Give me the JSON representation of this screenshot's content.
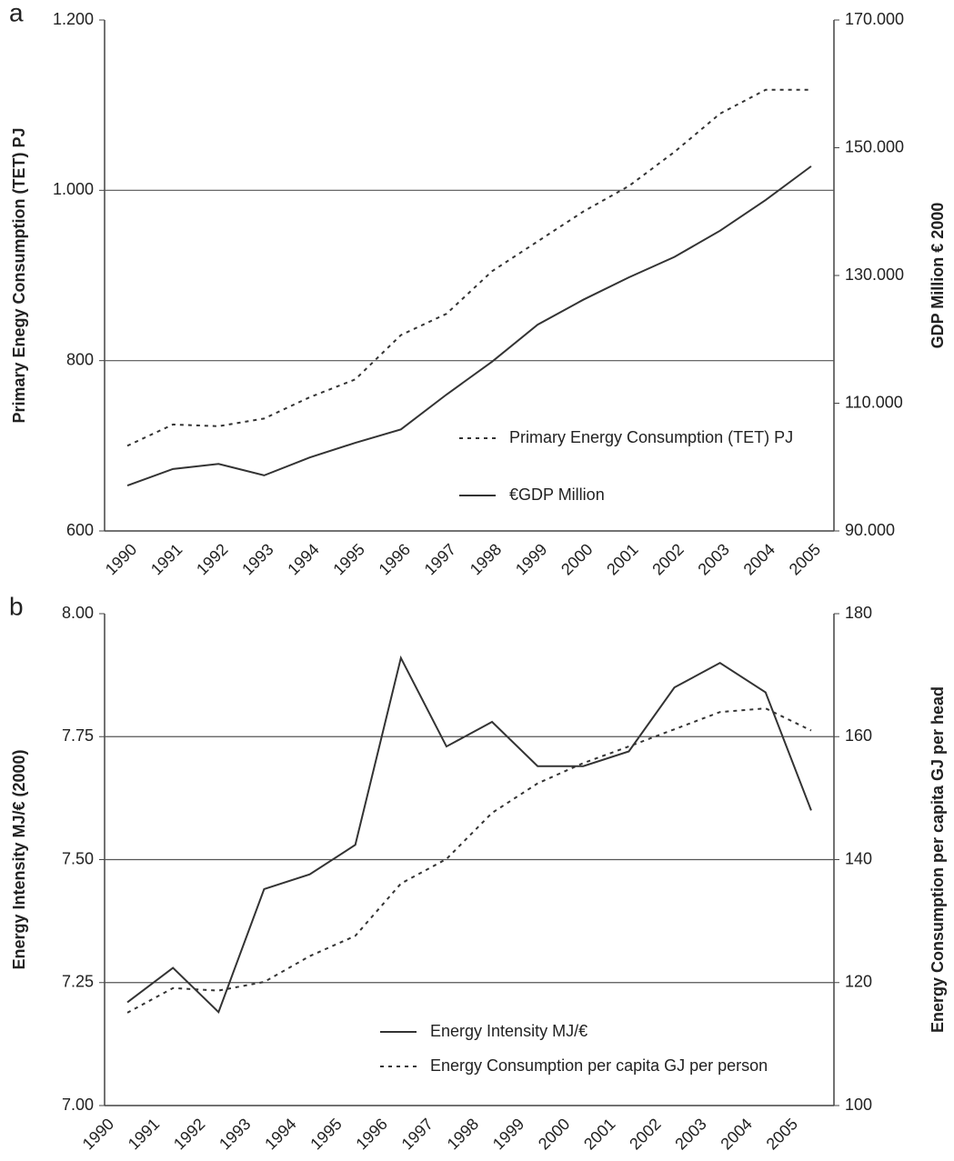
{
  "chart_data": [
    {
      "type": "line",
      "panel": "a",
      "categories": [
        "1990",
        "1991",
        "1992",
        "1993",
        "1994",
        "1995",
        "1996",
        "1997",
        "1998",
        "1999",
        "2000",
        "2001",
        "2002",
        "2003",
        "2004",
        "2005"
      ],
      "y_label": "Primary Enegy Consumption (TET) PJ",
      "y2_label": "GDP Million € 2000",
      "ylim": [
        600,
        1200
      ],
      "yticks": [
        600,
        800,
        {
          "value": 1000,
          "label": "1.000"
        },
        {
          "value": 1200,
          "label": "1.200"
        }
      ],
      "y2lim": [
        90000,
        170000
      ],
      "y2ticks": [
        {
          "value": 90000,
          "label": "90.000"
        },
        {
          "value": 110000,
          "label": "110.000"
        },
        {
          "value": 130000,
          "label": "130.000"
        },
        {
          "value": 150000,
          "label": "150.000"
        },
        {
          "value": 170000,
          "label": "170.000"
        }
      ],
      "grid": true,
      "series": [
        {
          "name": "Primary Energy Consumption (TET) PJ",
          "color": "#333333",
          "style": "dotted",
          "values": [
            700,
            725,
            723,
            732,
            757,
            778,
            830,
            855,
            905,
            940,
            975,
            1005,
            1045,
            1090,
            1118,
            1118
          ]
        },
        {
          "name": "€GDP Million",
          "color": "#333333",
          "style": "solid",
          "axis": "y2",
          "values": [
            97100,
            99700,
            100500,
            98700,
            101500,
            103800,
            105900,
            111350,
            116500,
            122300,
            126200,
            129700,
            132900,
            137000,
            141800,
            147100
          ]
        }
      ]
    },
    {
      "type": "line",
      "panel": "b",
      "categories": [
        "1990",
        "1991",
        "1992",
        "1993",
        "1994",
        "1995",
        "1996",
        "1997",
        "1998",
        "1999",
        "2000",
        "2001",
        "2002",
        "2003",
        "2004",
        "2005"
      ],
      "y_label": "Energy Intensity MJ/€ (2000)",
      "y2_label": "Energy Consumption per capita GJ per head",
      "ylim": [
        7,
        8
      ],
      "yticks": [
        {
          "value": 7,
          "label": "7.00"
        },
        7.25,
        {
          "value": 7.5,
          "label": "7.50"
        },
        7.75,
        {
          "value": 8,
          "label": "8.00"
        }
      ],
      "y2lim": [
        100,
        180
      ],
      "y2ticks": [
        100,
        120,
        140,
        160,
        180
      ],
      "grid": true,
      "series": [
        {
          "name": "Energy Intensity MJ/€",
          "color": "#333333",
          "style": "solid",
          "values": [
            7.21,
            7.28,
            7.19,
            7.44,
            7.47,
            7.53,
            7.91,
            7.73,
            7.78,
            7.69,
            7.69,
            7.72,
            7.85,
            7.9,
            7.84,
            7.6
          ]
        },
        {
          "name": "Energy Consumption per capita GJ per person",
          "color": "#333333",
          "style": "dotted",
          "axis": "y2",
          "values": [
            115.1,
            119.1,
            118.7,
            120.1,
            124.3,
            127.6,
            136.1,
            140.1,
            147.6,
            152.4,
            155.7,
            158.4,
            161.2,
            164,
            164.6,
            161
          ]
        }
      ]
    }
  ]
}
